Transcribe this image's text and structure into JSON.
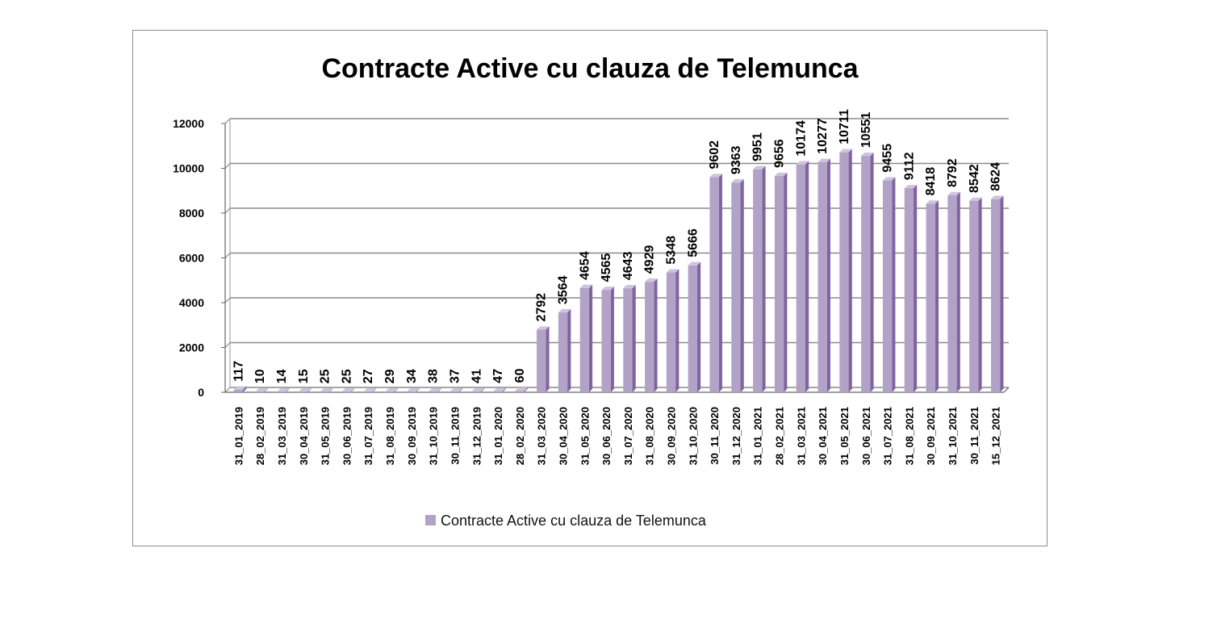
{
  "chart_data": {
    "type": "bar",
    "title": "Contracte Active cu clauza de Telemunca",
    "xlabel": "",
    "ylabel": "",
    "ylim": [
      0,
      12000
    ],
    "yticks": [
      0,
      2000,
      4000,
      6000,
      8000,
      10000,
      12000
    ],
    "grid": true,
    "legend_position": "bottom",
    "bar_color": "#b3a2c7",
    "bar_side_color": "#8064a2",
    "categories": [
      "31_01_2019",
      "28_02_2019",
      "31_03_2019",
      "30_04_2019",
      "31_05_2019",
      "30_06_2019",
      "31_07_2019",
      "31_08_2019",
      "30_09_2019",
      "31_10_2019",
      "30_11_2019",
      "31_12_2019",
      "31_01_2020",
      "28_02_2020",
      "31_03_2020",
      "30_04_2020",
      "31_05_2020",
      "30_06_2020",
      "31_07_2020",
      "31_08_2020",
      "30_09_2020",
      "31_10_2020",
      "30_11_2020",
      "31_12_2020",
      "31_01_2021",
      "28_02_2021",
      "31_03_2021",
      "30_04_2021",
      "31_05_2021",
      "30_06_2021",
      "31_07_2021",
      "31_08_2021",
      "30_09_2021",
      "31_10_2021",
      "30_11_2021",
      "15_12_2021"
    ],
    "series": [
      {
        "name": "Contracte Active cu clauza de Telemunca",
        "values": [
          117,
          10,
          14,
          15,
          25,
          25,
          27,
          29,
          34,
          38,
          37,
          41,
          47,
          60,
          2792,
          3564,
          4654,
          4565,
          4643,
          4929,
          5348,
          5666,
          9602,
          9363,
          9951,
          9656,
          10174,
          10277,
          10711,
          10551,
          9455,
          9112,
          8418,
          8792,
          8542,
          8624
        ]
      }
    ]
  }
}
